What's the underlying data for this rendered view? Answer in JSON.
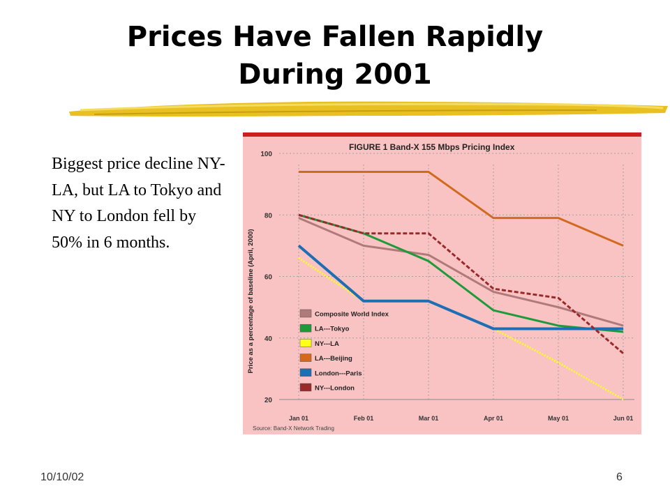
{
  "slide": {
    "title_line1": "Prices Have Fallen Rapidly",
    "title_line2": "During 2001",
    "body_text": "Biggest price decline NY-LA, but LA to Tokyo and NY to London fell by 50% in 6 months.",
    "footer_date": "10/10/02",
    "page_number": "6"
  },
  "chart_data": {
    "type": "line",
    "title": "FIGURE 1  Band-X 155 Mbps Pricing Index",
    "ylabel": "Price as a percentage of baseline (April, 2000)",
    "xlabel": "",
    "source": "Source: Band-X Network Trading",
    "categories": [
      "Jan 01",
      "Feb 01",
      "Mar 01",
      "Apr 01",
      "May 01",
      "Jun 01"
    ],
    "yticks": [
      "20",
      "40",
      "60",
      "80",
      "100"
    ],
    "ylim": [
      20,
      100
    ],
    "grid": true,
    "legend_position": "lower-left",
    "background_color": "#f9c3c3",
    "series": [
      {
        "name": "Composite World Index",
        "color": "#b07a7a",
        "style": "solid",
        "values": [
          79,
          70,
          67,
          55,
          50,
          44
        ]
      },
      {
        "name": "LA---Tokyo",
        "color": "#1f9a3a",
        "style": "solid",
        "values": [
          80,
          74,
          65,
          49,
          44,
          42
        ]
      },
      {
        "name": "NY---LA",
        "color": "#ffff1a",
        "style": "dotted",
        "values": [
          66,
          52,
          52,
          43,
          32,
          20
        ]
      },
      {
        "name": "LA---Beijing",
        "color": "#d2691e",
        "style": "solid",
        "values": [
          94,
          94,
          94,
          79,
          79,
          70
        ]
      },
      {
        "name": "London---Paris",
        "color": "#1e6eb4",
        "style": "solid",
        "values": [
          70,
          52,
          52,
          43,
          43,
          43
        ]
      },
      {
        "name": "NY---London",
        "color": "#9a2a2a",
        "style": "dashed",
        "values": [
          80,
          74,
          74,
          56,
          53,
          35
        ]
      }
    ]
  }
}
